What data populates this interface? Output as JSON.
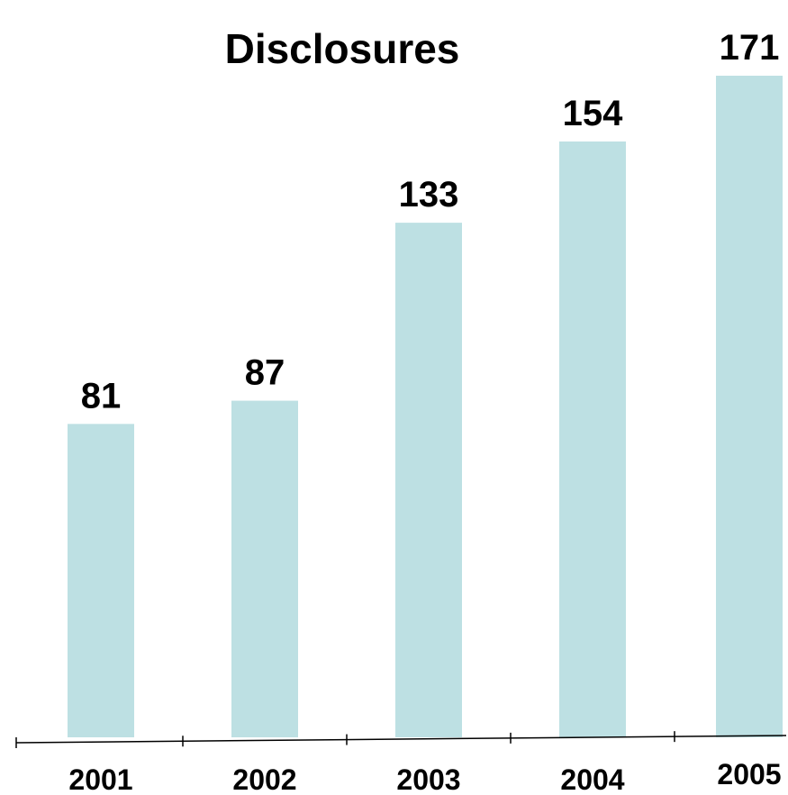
{
  "chart_data": {
    "type": "bar",
    "title": "Disclosures",
    "categories": [
      "2001",
      "2002",
      "2003",
      "2004",
      "2005"
    ],
    "values": [
      81,
      87,
      133,
      154,
      171
    ],
    "data_labels": [
      "81",
      "87",
      "133",
      "154",
      "171"
    ],
    "xlabel": "",
    "ylabel": "",
    "ylim": [
      0,
      171
    ],
    "grid": false,
    "legend": "none",
    "bar_color": "#bde0e3",
    "axis_color": "#000000"
  }
}
